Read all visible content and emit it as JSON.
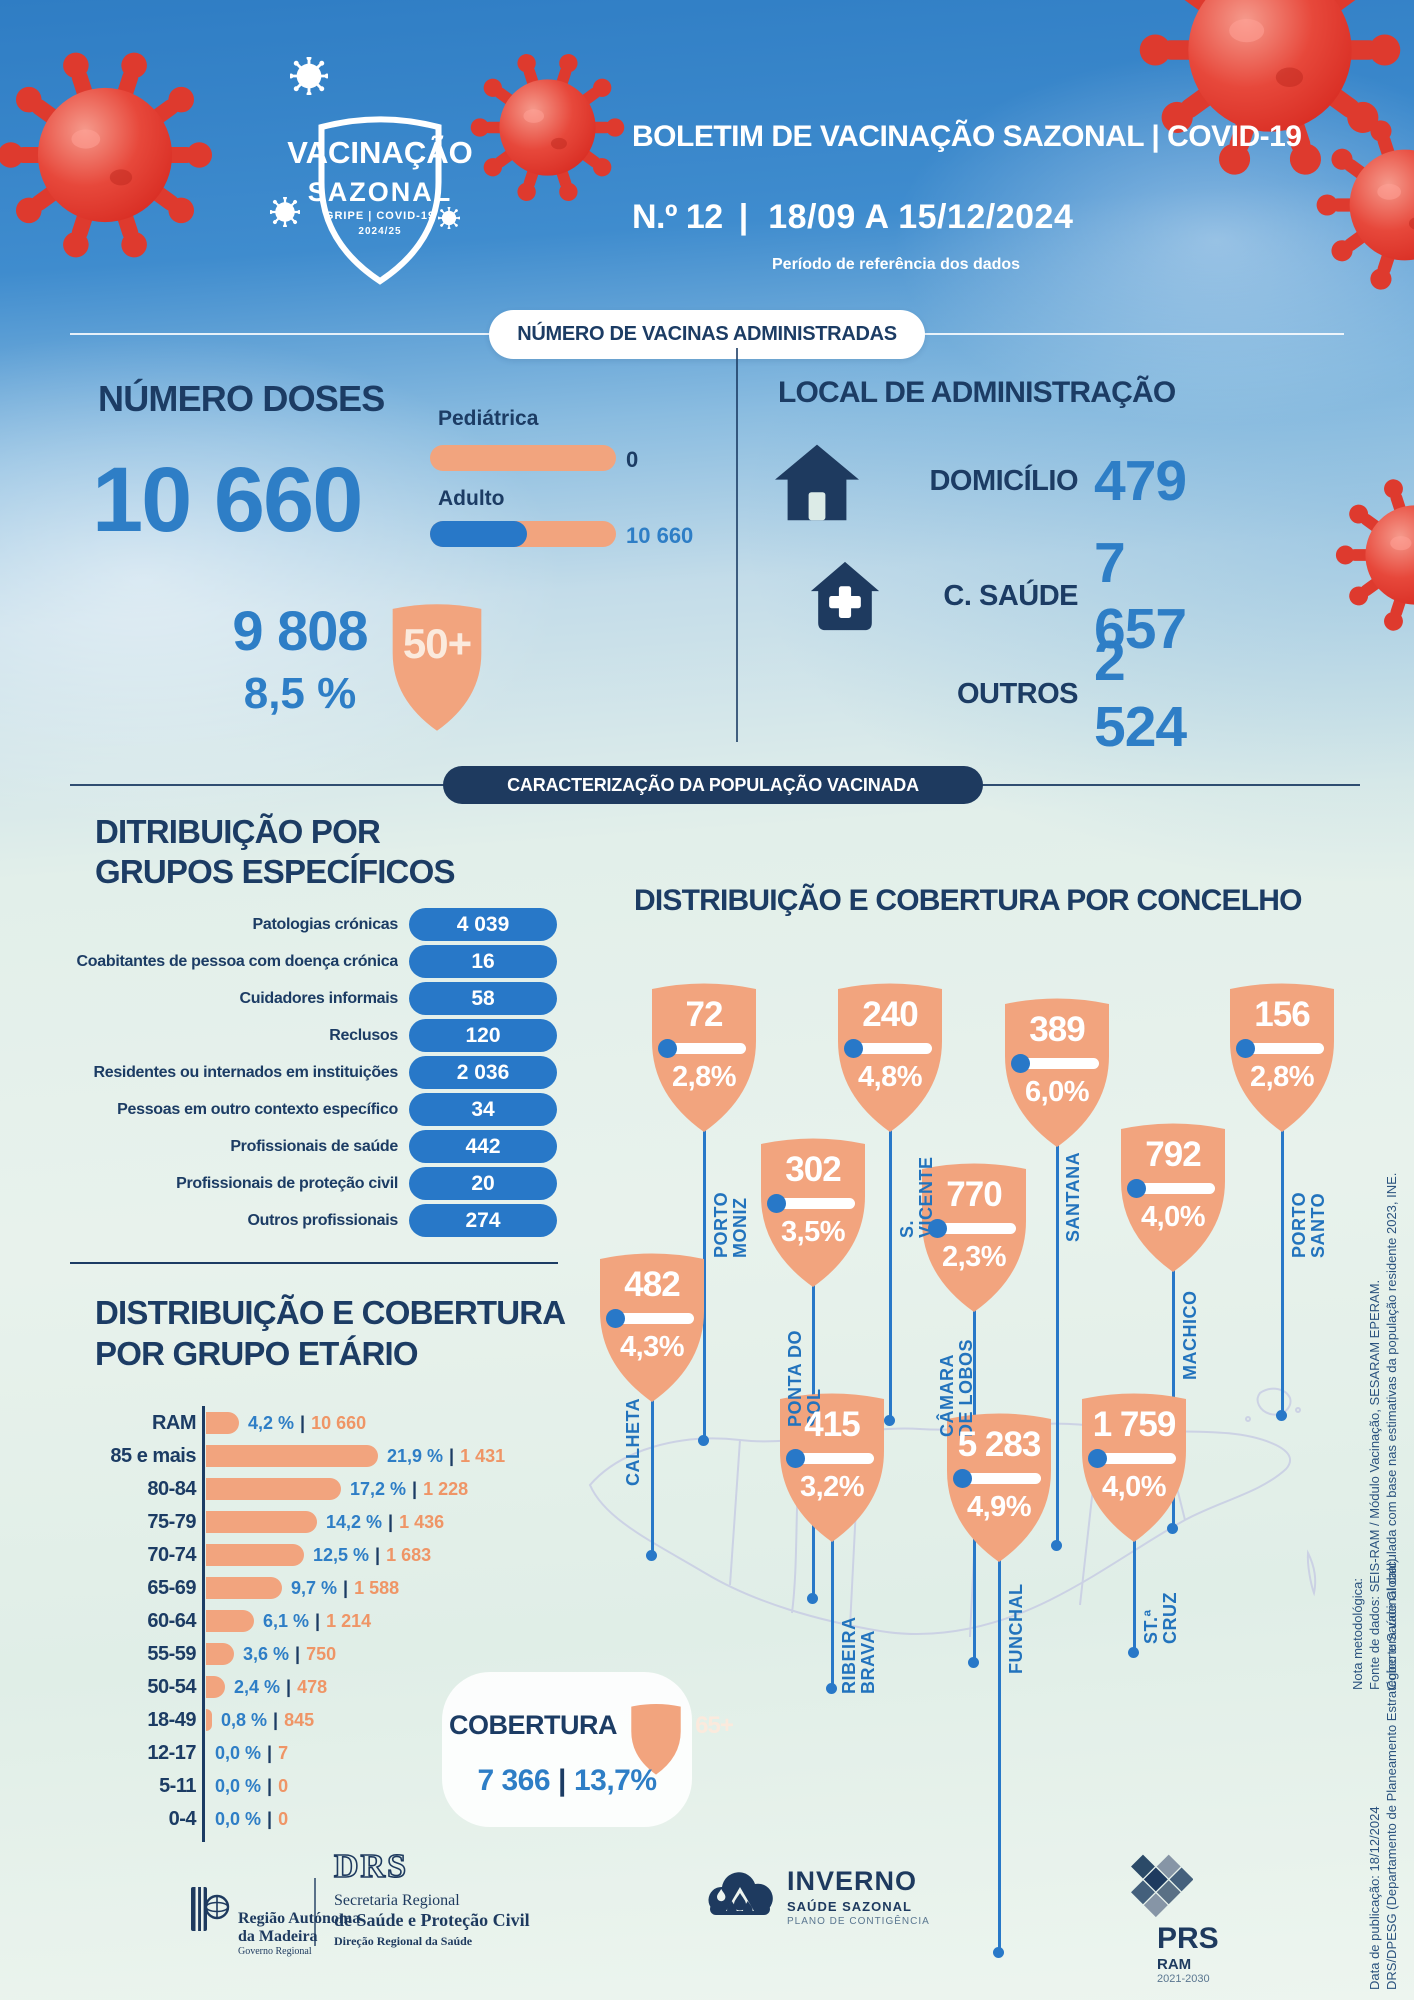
{
  "header": {
    "logo": {
      "title_line1": "VACINAÇÃO",
      "title_line2": "SAZONAL",
      "subtitle": "GRIPE | COVID-19",
      "season": "2024/25"
    },
    "title": "BOLETIM DE VACINAÇÃO SAZONAL | COVID-19",
    "edition": "N.º 12",
    "separator": "|",
    "period": "18/09 A 15/12/2024",
    "period_note": "Período de referência dos dados"
  },
  "banners": {
    "vaccines": "NÚMERO DE VACINAS ADMINISTRADAS",
    "population": "CARACTERIZAÇÃO DA POPULAÇÃO VACINADA"
  },
  "doses": {
    "title": "NÚMERO DOSES",
    "total": "10 660",
    "pediatric_label": "Pediátrica",
    "pediatric_value": "0",
    "adult_label": "Adulto",
    "adult_value": "10 660",
    "age50_count": "9 808",
    "age50_pct": "8,5 %",
    "age50_badge": "50+"
  },
  "local": {
    "title": "LOCAL DE ADMINISTRAÇÃO",
    "items": [
      {
        "label": "DOMICÍLIO",
        "value": "479",
        "icon": "house-icon"
      },
      {
        "label": "C. SAÚDE",
        "value": "7 657",
        "icon": "health-center-icon"
      },
      {
        "label": "OUTROS",
        "value": "2 524",
        "icon": "none"
      }
    ]
  },
  "groups": {
    "title_line1": "DITRIBUIÇÃO POR",
    "title_line2": "GRUPOS ESPECÍFICOS",
    "items": [
      {
        "label": "Patologias crónicas",
        "value": "4 039"
      },
      {
        "label": "Coabitantes de pessoa com doença crónica",
        "value": "16"
      },
      {
        "label": "Cuidadores informais",
        "value": "58"
      },
      {
        "label": "Reclusos",
        "value": "120"
      },
      {
        "label": "Residentes ou internados em instituições",
        "value": "2 036"
      },
      {
        "label": "Pessoas em outro contexto específico",
        "value": "34"
      },
      {
        "label": "Profissionais de saúde",
        "value": "442"
      },
      {
        "label": "Profissionais de proteção civil",
        "value": "20"
      },
      {
        "label": "Outros profissionais",
        "value": "274"
      }
    ]
  },
  "concelhos": {
    "title": "DISTRIBUIÇÃO E COBERTURA POR CONCELHO",
    "items": [
      {
        "name": "PORTO MONIZ",
        "value": "72",
        "pct": "2,8%"
      },
      {
        "name": "S. VICENTE",
        "value": "240",
        "pct": "4,8%"
      },
      {
        "name": "SANTANA",
        "value": "389",
        "pct": "6,0%"
      },
      {
        "name": "PORTO SANTO",
        "value": "156",
        "pct": "2,8%"
      },
      {
        "name": "PONTA DO SOL",
        "value": "302",
        "pct": "3,5%"
      },
      {
        "name": "CÂMARA DE LOBOS",
        "value": "770",
        "pct": "2,3%"
      },
      {
        "name": "MACHICO",
        "value": "792",
        "pct": "4,0%"
      },
      {
        "name": "CALHETA",
        "value": "482",
        "pct": "4,3%"
      },
      {
        "name": "RIBEIRA BRAVA",
        "value": "415",
        "pct": "3,2%"
      },
      {
        "name": "FUNCHAL",
        "value": "5 283",
        "pct": "4,9%"
      },
      {
        "name": "ST.ª CRUZ",
        "value": "1 759",
        "pct": "4,0%"
      }
    ]
  },
  "age": {
    "title_line1": "DISTRIBUIÇÃO E COBERTURA",
    "title_line2": "POR GRUPO ETÁRIO",
    "sep": "|",
    "rows": [
      {
        "label": "RAM",
        "pct": "4,2 %",
        "count": "10 660",
        "pct_num": 4.2
      },
      {
        "label": "85 e mais",
        "pct": "21,9 %",
        "count": "1 431",
        "pct_num": 21.9
      },
      {
        "label": "80-84",
        "pct": "17,2 %",
        "count": "1 228",
        "pct_num": 17.2
      },
      {
        "label": "75-79",
        "pct": "14,2 %",
        "count": "1 436",
        "pct_num": 14.2
      },
      {
        "label": "70-74",
        "pct": "12,5 %",
        "count": "1 683",
        "pct_num": 12.5
      },
      {
        "label": "65-69",
        "pct": "9,7 %",
        "count": "1 588",
        "pct_num": 9.7
      },
      {
        "label": "60-64",
        "pct": "6,1 %",
        "count": "1 214",
        "pct_num": 6.1
      },
      {
        "label": "55-59",
        "pct": "3,6 %",
        "count": "750",
        "pct_num": 3.6
      },
      {
        "label": "50-54",
        "pct": "2,4 %",
        "count": "478",
        "pct_num": 2.4
      },
      {
        "label": "18-49",
        "pct": "0,8 %",
        "count": "845",
        "pct_num": 0.8
      },
      {
        "label": "12-17",
        "pct": "0,0 %",
        "count": "7",
        "pct_num": 0
      },
      {
        "label": "5-11",
        "pct": "0,0 %",
        "count": "0",
        "pct_num": 0
      },
      {
        "label": "0-4",
        "pct": "0,0 %",
        "count": "0",
        "pct_num": 0
      }
    ]
  },
  "cobertura65": {
    "label": "COBERTURA",
    "badge": "65+",
    "value": "7 366",
    "separator": "|",
    "pct": "13,7%"
  },
  "footer": {
    "ram": {
      "line1": "Região Autónoma",
      "line2": "da Madeira",
      "line3": "Governo Regional"
    },
    "drs": {
      "acronym": "DRS",
      "line1": "Secretaria Regional",
      "line2": "de Saúde e Proteção Civil",
      "line3": "Direção Regional da Saúde"
    },
    "inverno": {
      "name": "INVERNO",
      "line2": "SAÚDE SAZONAL",
      "line3": "PLANO DE CONTIGÊNCIA"
    },
    "prs": {
      "name": "PRS",
      "sub": "RAM",
      "years": "2021-2030"
    }
  },
  "side_notes": {
    "methodology": {
      "line1": "Nota metodológica:",
      "line2": "Fonte de dados: SEIS-RAM / Módulo Vacinação, SESARAM EPERAM.",
      "line3": "Cobertura vacinal calculada com base nas estimativas da população residente 2023, INE."
    },
    "publication": {
      "line1": "Data de publicação: 18/12/2024",
      "line2": "DRS/DPESG (Departamento de Planeamento Estratégico e Saúde Global)"
    }
  },
  "colors": {
    "navy": "#1C3C64",
    "banner_navy": "#1E3A5F",
    "blue": "#2878C8",
    "blue_text": "#2E7EC6",
    "salmon": "#F2A47E",
    "salmon_text": "#EF9566",
    "map_outline": "#C8CDE4",
    "virus_red": "#E2372C",
    "white": "#FFFFFF"
  },
  "chart_data": [
    {
      "type": "bar",
      "title": "DISTRIBUIÇÃO E COBERTURA POR GRUPO ETÁRIO",
      "orientation": "horizontal",
      "categories": [
        "RAM",
        "85 e mais",
        "80-84",
        "75-79",
        "70-74",
        "65-69",
        "60-64",
        "55-59",
        "50-54",
        "18-49",
        "12-17",
        "5-11",
        "0-4"
      ],
      "series": [
        {
          "name": "Cobertura (%)",
          "values": [
            4.2,
            21.9,
            17.2,
            14.2,
            12.5,
            9.7,
            6.1,
            3.6,
            2.4,
            0.8,
            0.0,
            0.0,
            0.0
          ]
        },
        {
          "name": "Doses",
          "values": [
            10660,
            1431,
            1228,
            1436,
            1683,
            1588,
            1214,
            750,
            478,
            845,
            7,
            0,
            0
          ]
        }
      ],
      "xlabel": "",
      "ylabel": "",
      "xlim": [
        0,
        22
      ],
      "grid": false
    },
    {
      "type": "bar",
      "title": "DITRIBUIÇÃO POR GRUPOS ESPECÍFICOS",
      "categories": [
        "Patologias crónicas",
        "Coabitantes de pessoa com doença crónica",
        "Cuidadores informais",
        "Reclusos",
        "Residentes ou internados em instituições",
        "Pessoas em outro contexto específico",
        "Profissionais de saúde",
        "Profissionais de proteção civil",
        "Outros profissionais"
      ],
      "values": [
        4039,
        16,
        58,
        120,
        2036,
        34,
        442,
        20,
        274
      ]
    },
    {
      "type": "table",
      "title": "DISTRIBUIÇÃO E COBERTURA POR CONCELHO",
      "columns": [
        "Concelho",
        "Doses",
        "Cobertura %"
      ],
      "rows": [
        [
          "Porto Moniz",
          72,
          2.8
        ],
        [
          "S. Vicente",
          240,
          4.8
        ],
        [
          "Santana",
          389,
          6.0
        ],
        [
          "Porto Santo",
          156,
          2.8
        ],
        [
          "Ponta do Sol",
          302,
          3.5
        ],
        [
          "Câmara de Lobos",
          770,
          2.3
        ],
        [
          "Machico",
          792,
          4.0
        ],
        [
          "Calheta",
          482,
          4.3
        ],
        [
          "Ribeira Brava",
          415,
          3.2
        ],
        [
          "Funchal",
          5283,
          4.9
        ],
        [
          "St.ª Cruz",
          1759,
          4.0
        ]
      ]
    },
    {
      "type": "bar",
      "title": "NÚMERO DE VACINAS ADMINISTRADAS",
      "categories": [
        "Pediátrica",
        "Adulto"
      ],
      "values": [
        0,
        10660
      ]
    },
    {
      "type": "table",
      "title": "LOCAL DE ADMINISTRAÇÃO",
      "columns": [
        "Local",
        "Doses"
      ],
      "rows": [
        [
          "Domicílio",
          479
        ],
        [
          "C. Saúde",
          7657
        ],
        [
          "Outros",
          2524
        ]
      ]
    }
  ]
}
